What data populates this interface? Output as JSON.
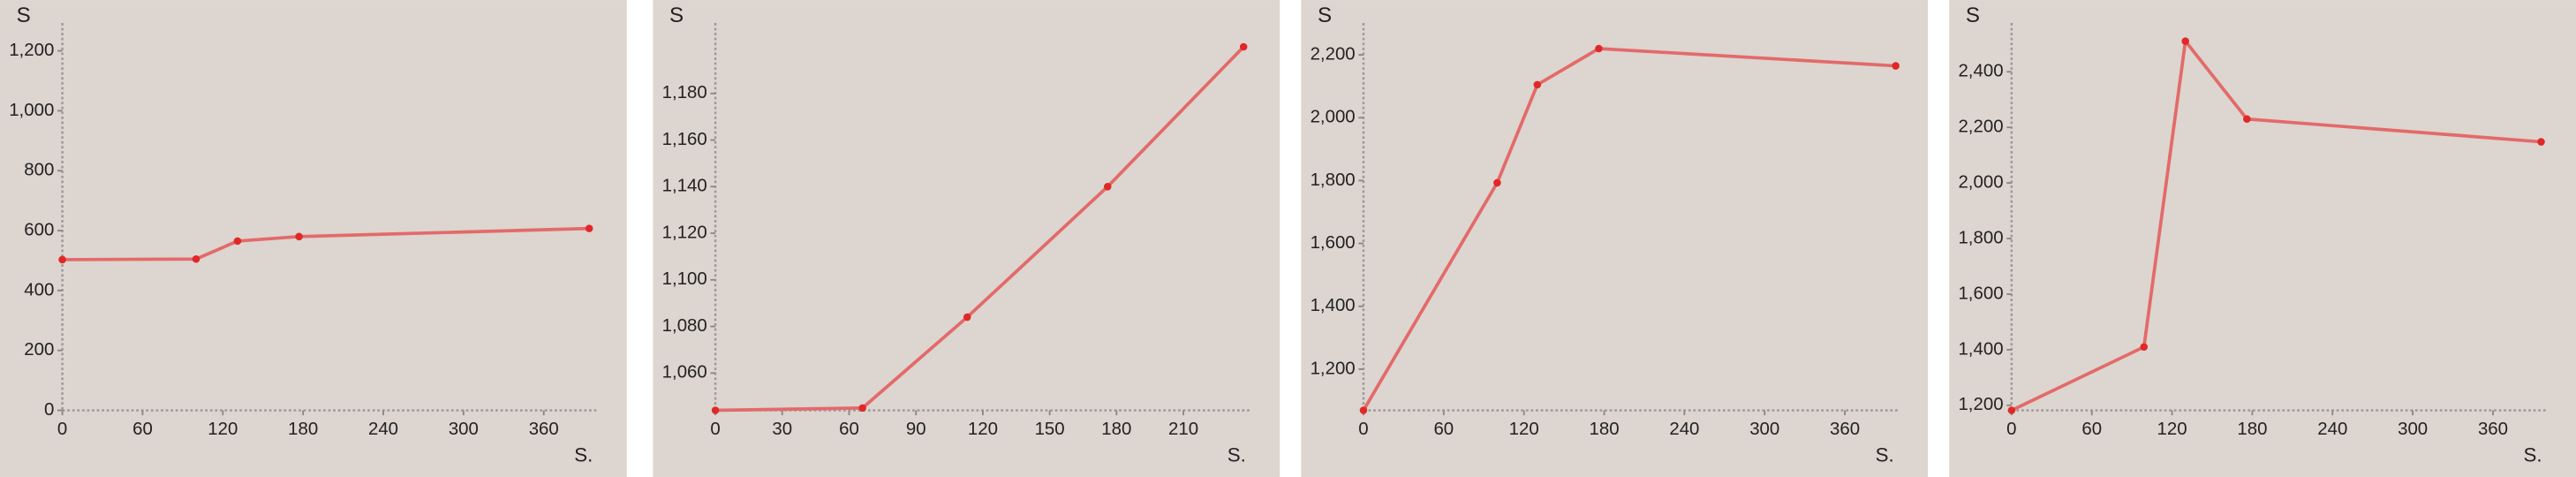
{
  "chart_data": [
    {
      "type": "line",
      "y_label": "S",
      "x_label": "S.",
      "color": "#e36a6a",
      "marker_color": "#e02828",
      "x": [
        0,
        100,
        131,
        177,
        394
      ],
      "values": [
        503,
        505,
        565,
        580,
        607
      ],
      "xlim": [
        0,
        400
      ],
      "ylim": [
        0,
        1260
      ],
      "xticks": [
        0,
        60,
        120,
        180,
        240,
        300,
        360
      ],
      "yticks": [
        0,
        200,
        400,
        600,
        800,
        {
          "value": 1000,
          "label": "1,000"
        },
        {
          "value": 1200,
          "label": "1,200"
        }
      ]
    },
    {
      "type": "line",
      "y_label": "S",
      "x_label": "S.",
      "color": "#e36a6a",
      "marker_color": "#e02828",
      "x": [
        0,
        66,
        113,
        176,
        237
      ],
      "values": [
        1044,
        1045,
        1084,
        1140,
        1200
      ],
      "xlim": [
        0,
        240
      ],
      "ylim": [
        1044,
        1206
      ],
      "xticks": [
        0,
        30,
        60,
        90,
        120,
        150,
        180,
        210
      ],
      "yticks": [
        {
          "value": 1060,
          "label": "1,060"
        },
        {
          "value": 1080,
          "label": "1,080"
        },
        {
          "value": 1100,
          "label": "1,100"
        },
        {
          "value": 1120,
          "label": "1,120"
        },
        {
          "value": 1140,
          "label": "1,140"
        },
        {
          "value": 1160,
          "label": "1,160"
        },
        {
          "value": 1180,
          "label": "1,180"
        }
      ]
    },
    {
      "type": "line",
      "y_label": "S",
      "x_label": "S.",
      "color": "#e36a6a",
      "marker_color": "#e02828",
      "x": [
        0,
        100,
        130,
        176,
        398
      ],
      "values": [
        1069,
        1793,
        2105,
        2220,
        2165
      ],
      "xlim": [
        0,
        400
      ],
      "ylim": [
        1069,
        2270
      ],
      "xticks": [
        0,
        60,
        120,
        180,
        240,
        300,
        360
      ],
      "yticks": [
        {
          "value": 1200,
          "label": "1,200"
        },
        {
          "value": 1400,
          "label": "1,400"
        },
        {
          "value": 1600,
          "label": "1,600"
        },
        {
          "value": 1800,
          "label": "1,800"
        },
        {
          "value": 2000,
          "label": "2,000"
        },
        {
          "value": 2200,
          "label": "2,200"
        }
      ]
    },
    {
      "type": "line",
      "y_label": "S",
      "x_label": "S.",
      "color": "#e36a6a",
      "marker_color": "#e02828",
      "x": [
        0,
        99,
        130,
        176,
        396
      ],
      "values": [
        1182,
        1410,
        2510,
        2230,
        2148
      ],
      "xlim": [
        0,
        400
      ],
      "ylim": [
        1182,
        2540
      ],
      "xticks": [
        0,
        60,
        120,
        180,
        240,
        300,
        360
      ],
      "yticks": [
        {
          "value": 1200,
          "label": "1,200"
        },
        {
          "value": 1400,
          "label": "1,400"
        },
        {
          "value": 1600,
          "label": "1,600"
        },
        {
          "value": 1800,
          "label": "1,800"
        },
        {
          "value": 2000,
          "label": "2,000"
        },
        {
          "value": 2200,
          "label": "2,200"
        },
        {
          "value": 2400,
          "label": "2,400"
        }
      ]
    }
  ]
}
